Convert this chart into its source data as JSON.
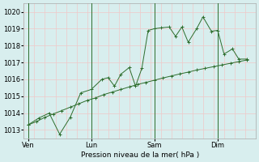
{
  "bg_color": "#d8eeee",
  "grid_color_h": "#f0c8c8",
  "grid_color_v": "#f0c8c8",
  "vline_color": "#2d6e2d",
  "line_color": "#2d6e2d",
  "xlabel": "Pression niveau de la mer( hPa )",
  "ylim": [
    1012.5,
    1020.5
  ],
  "yticks": [
    1013,
    1014,
    1015,
    1016,
    1017,
    1018,
    1019,
    1020
  ],
  "xtick_labels": [
    "Ven",
    "Lun",
    "Sam",
    "Dim"
  ],
  "xtick_positions": [
    0,
    3,
    6,
    9
  ],
  "vline_positions": [
    0,
    3,
    6,
    9
  ],
  "xlim": [
    -0.2,
    10.8
  ],
  "series1_x": [
    0,
    0.4,
    0.8,
    1.2,
    1.6,
    2.0,
    2.4,
    2.8,
    3.2,
    3.6,
    4.0,
    4.4,
    4.8,
    5.2,
    5.6,
    6.0,
    6.4,
    6.8,
    7.2,
    7.6,
    8.0,
    8.4,
    8.8,
    9.2,
    9.6,
    10.0,
    10.4
  ],
  "series1_y": [
    1013.3,
    1013.5,
    1013.75,
    1013.95,
    1014.15,
    1014.35,
    1014.55,
    1014.75,
    1014.9,
    1015.1,
    1015.25,
    1015.4,
    1015.55,
    1015.7,
    1015.82,
    1015.95,
    1016.08,
    1016.2,
    1016.32,
    1016.43,
    1016.55,
    1016.65,
    1016.75,
    1016.85,
    1016.95,
    1017.05,
    1017.15
  ],
  "series2_x": [
    0,
    0.5,
    1.0,
    1.5,
    2.0,
    2.5,
    3.0,
    3.5,
    3.8,
    4.1,
    4.4,
    4.8,
    5.1,
    5.4,
    5.7,
    6.0,
    6.3,
    6.7,
    7.0,
    7.3,
    7.6,
    8.0,
    8.3,
    8.7,
    9.0,
    9.3,
    9.7,
    10.0,
    10.4
  ],
  "series2_y": [
    1013.3,
    1013.7,
    1014.0,
    1012.75,
    1013.75,
    1015.2,
    1015.4,
    1016.0,
    1016.1,
    1015.6,
    1016.3,
    1016.7,
    1015.6,
    1016.65,
    1018.9,
    1019.0,
    1019.05,
    1019.1,
    1018.55,
    1019.1,
    1018.2,
    1019.0,
    1019.7,
    1018.85,
    1018.9,
    1017.5,
    1017.8,
    1017.2,
    1017.2
  ]
}
